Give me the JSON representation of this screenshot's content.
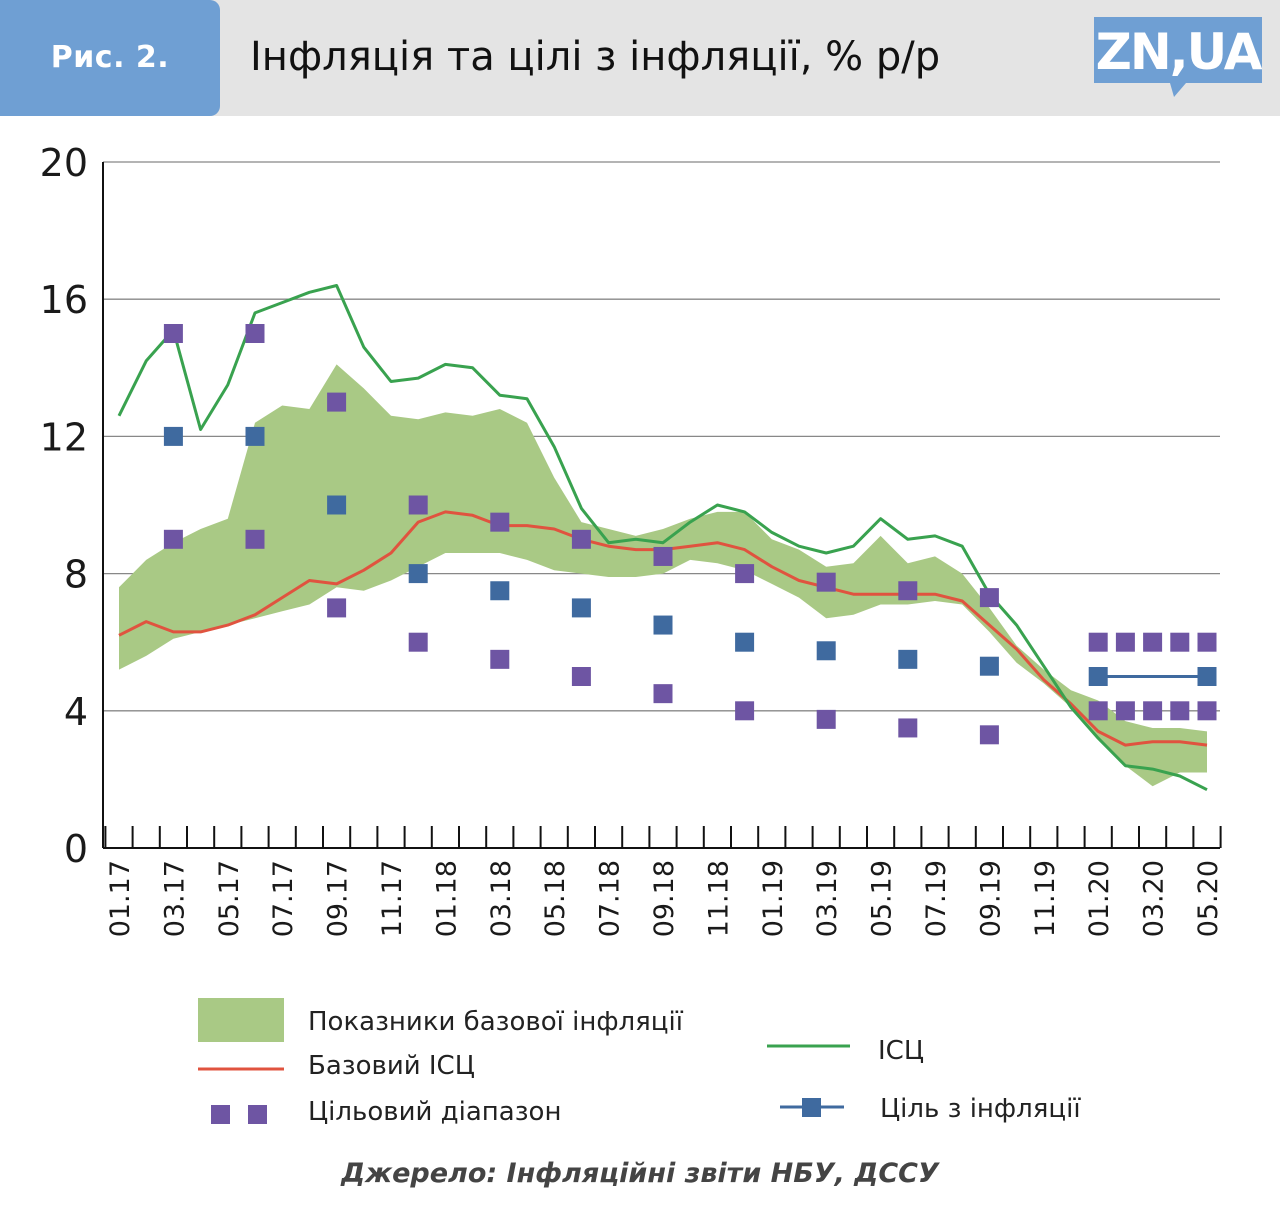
{
  "header": {
    "badge": "Рис. 2.",
    "title": "Інфляція та цілі з інфляції, % р/р",
    "logo_text": "ZN,UA"
  },
  "colors": {
    "header_bg": "#e4e4e4",
    "badge_bg": "#6f9fd3",
    "logo_bg": "#6f9fd3",
    "band": "#a9c985",
    "core_cpi": "#e0533f",
    "cpi": "#39a24f",
    "target_range": "#6e55a3",
    "target": "#3f6a9f",
    "grid": "#888888"
  },
  "chart_data": {
    "type": "line",
    "ylim": [
      0,
      20
    ],
    "yticks": [
      "0",
      "4",
      "8",
      "12",
      "16",
      "20"
    ],
    "grid": true,
    "x_tick_labels": [
      "01.17",
      "03.17",
      "05.17",
      "07.17",
      "09.17",
      "11.17",
      "01.18",
      "03.18",
      "05.18",
      "07.18",
      "09.18",
      "11.18",
      "01.19",
      "03.19",
      "05.19",
      "07.19",
      "09.19",
      "11.19",
      "01.20",
      "03.20",
      "05.20"
    ],
    "months": [
      "01.17",
      "02.17",
      "03.17",
      "04.17",
      "05.17",
      "06.17",
      "07.17",
      "08.17",
      "09.17",
      "10.17",
      "11.17",
      "12.17",
      "01.18",
      "02.18",
      "03.18",
      "04.18",
      "05.18",
      "06.18",
      "07.18",
      "08.18",
      "09.18",
      "10.18",
      "11.18",
      "12.18",
      "01.19",
      "02.19",
      "03.19",
      "04.19",
      "05.19",
      "06.19",
      "07.19",
      "08.19",
      "09.19",
      "10.19",
      "11.19",
      "12.19",
      "01.20",
      "02.20",
      "03.20",
      "04.20",
      "05.20"
    ],
    "series": [
      {
        "name": "Показники базової інфляції",
        "kind": "band",
        "upper": [
          7.6,
          8.4,
          8.9,
          9.3,
          9.6,
          12.4,
          12.9,
          12.8,
          14.1,
          13.4,
          12.6,
          12.5,
          12.7,
          12.6,
          12.8,
          12.4,
          10.8,
          9.5,
          9.3,
          9.1,
          9.3,
          9.6,
          9.8,
          9.8,
          9.0,
          8.7,
          8.2,
          8.3,
          9.1,
          8.3,
          8.5,
          8.0,
          7.0,
          5.9,
          5.2,
          4.6,
          4.3,
          3.7,
          3.5,
          3.5,
          3.4
        ],
        "lower": [
          5.2,
          5.6,
          6.1,
          6.3,
          6.5,
          6.7,
          6.9,
          7.1,
          7.6,
          7.5,
          7.8,
          8.2,
          8.6,
          8.6,
          8.6,
          8.4,
          8.1,
          8.0,
          7.9,
          7.9,
          8.0,
          8.4,
          8.3,
          8.1,
          7.7,
          7.3,
          6.7,
          6.8,
          7.1,
          7.1,
          7.2,
          7.1,
          6.3,
          5.4,
          4.8,
          4.1,
          3.2,
          2.4,
          1.8,
          2.2,
          2.2
        ]
      },
      {
        "name": "Базовий ІСЦ",
        "kind": "line",
        "values": [
          6.2,
          6.6,
          6.3,
          6.3,
          6.5,
          6.8,
          7.3,
          7.8,
          7.7,
          8.1,
          8.6,
          9.5,
          9.8,
          9.7,
          9.4,
          9.4,
          9.3,
          9.0,
          8.8,
          8.7,
          8.7,
          8.8,
          8.9,
          8.7,
          8.2,
          7.8,
          7.6,
          7.4,
          7.4,
          7.4,
          7.4,
          7.2,
          6.5,
          5.8,
          4.9,
          4.2,
          3.4,
          3.0,
          3.1,
          3.1,
          3.0
        ]
      },
      {
        "name": "ІСЦ",
        "kind": "line",
        "values": [
          12.6,
          14.2,
          15.1,
          12.2,
          13.5,
          15.6,
          15.9,
          16.2,
          16.4,
          14.6,
          13.6,
          13.7,
          14.1,
          14.0,
          13.2,
          13.1,
          11.7,
          9.9,
          8.9,
          9.0,
          8.9,
          9.5,
          10.0,
          9.8,
          9.2,
          8.8,
          8.6,
          8.8,
          9.6,
          9.0,
          9.1,
          8.8,
          7.4,
          6.5,
          5.3,
          4.1,
          3.2,
          2.4,
          2.3,
          2.1,
          1.7
        ]
      },
      {
        "name": "Цільовий діапазон",
        "kind": "points",
        "points": [
          [
            2,
            15
          ],
          [
            2,
            9
          ],
          [
            5,
            15
          ],
          [
            5,
            9
          ],
          [
            8,
            13
          ],
          [
            8,
            7
          ],
          [
            11,
            10
          ],
          [
            11,
            6
          ],
          [
            14,
            9.5
          ],
          [
            14,
            5.5
          ],
          [
            17,
            9
          ],
          [
            17,
            5
          ],
          [
            20,
            8.5
          ],
          [
            20,
            4.5
          ],
          [
            23,
            8
          ],
          [
            23,
            4
          ],
          [
            26,
            7.75
          ],
          [
            26,
            3.75
          ],
          [
            29,
            7.5
          ],
          [
            29,
            3.5
          ],
          [
            32,
            7.3
          ],
          [
            32,
            3.3
          ],
          [
            36,
            6
          ],
          [
            36,
            4
          ],
          [
            37,
            6
          ],
          [
            37,
            4
          ],
          [
            38,
            6
          ],
          [
            38,
            4
          ],
          [
            39,
            6
          ],
          [
            39,
            4
          ],
          [
            40,
            6
          ],
          [
            40,
            4
          ]
        ]
      },
      {
        "name": "Ціль з інфляції",
        "kind": "points",
        "points": [
          [
            2,
            12
          ],
          [
            5,
            12
          ],
          [
            8,
            10
          ],
          [
            11,
            8
          ],
          [
            14,
            7.5
          ],
          [
            17,
            7
          ],
          [
            20,
            6.5
          ],
          [
            23,
            6
          ],
          [
            26,
            5.75
          ],
          [
            29,
            5.5
          ],
          [
            32,
            5.3
          ],
          [
            36,
            5
          ],
          [
            40,
            5
          ]
        ],
        "line_from": 36
      }
    ]
  },
  "legend": {
    "band_label": "Показники базової інфляції",
    "core_label": "Базовий ІСЦ",
    "range_label": "Цільовий діапазон",
    "cpi_label": "ІСЦ",
    "target_label": "Ціль з інфляції"
  },
  "source": "Джерело: Інфляційні звіти НБУ, ДССУ"
}
